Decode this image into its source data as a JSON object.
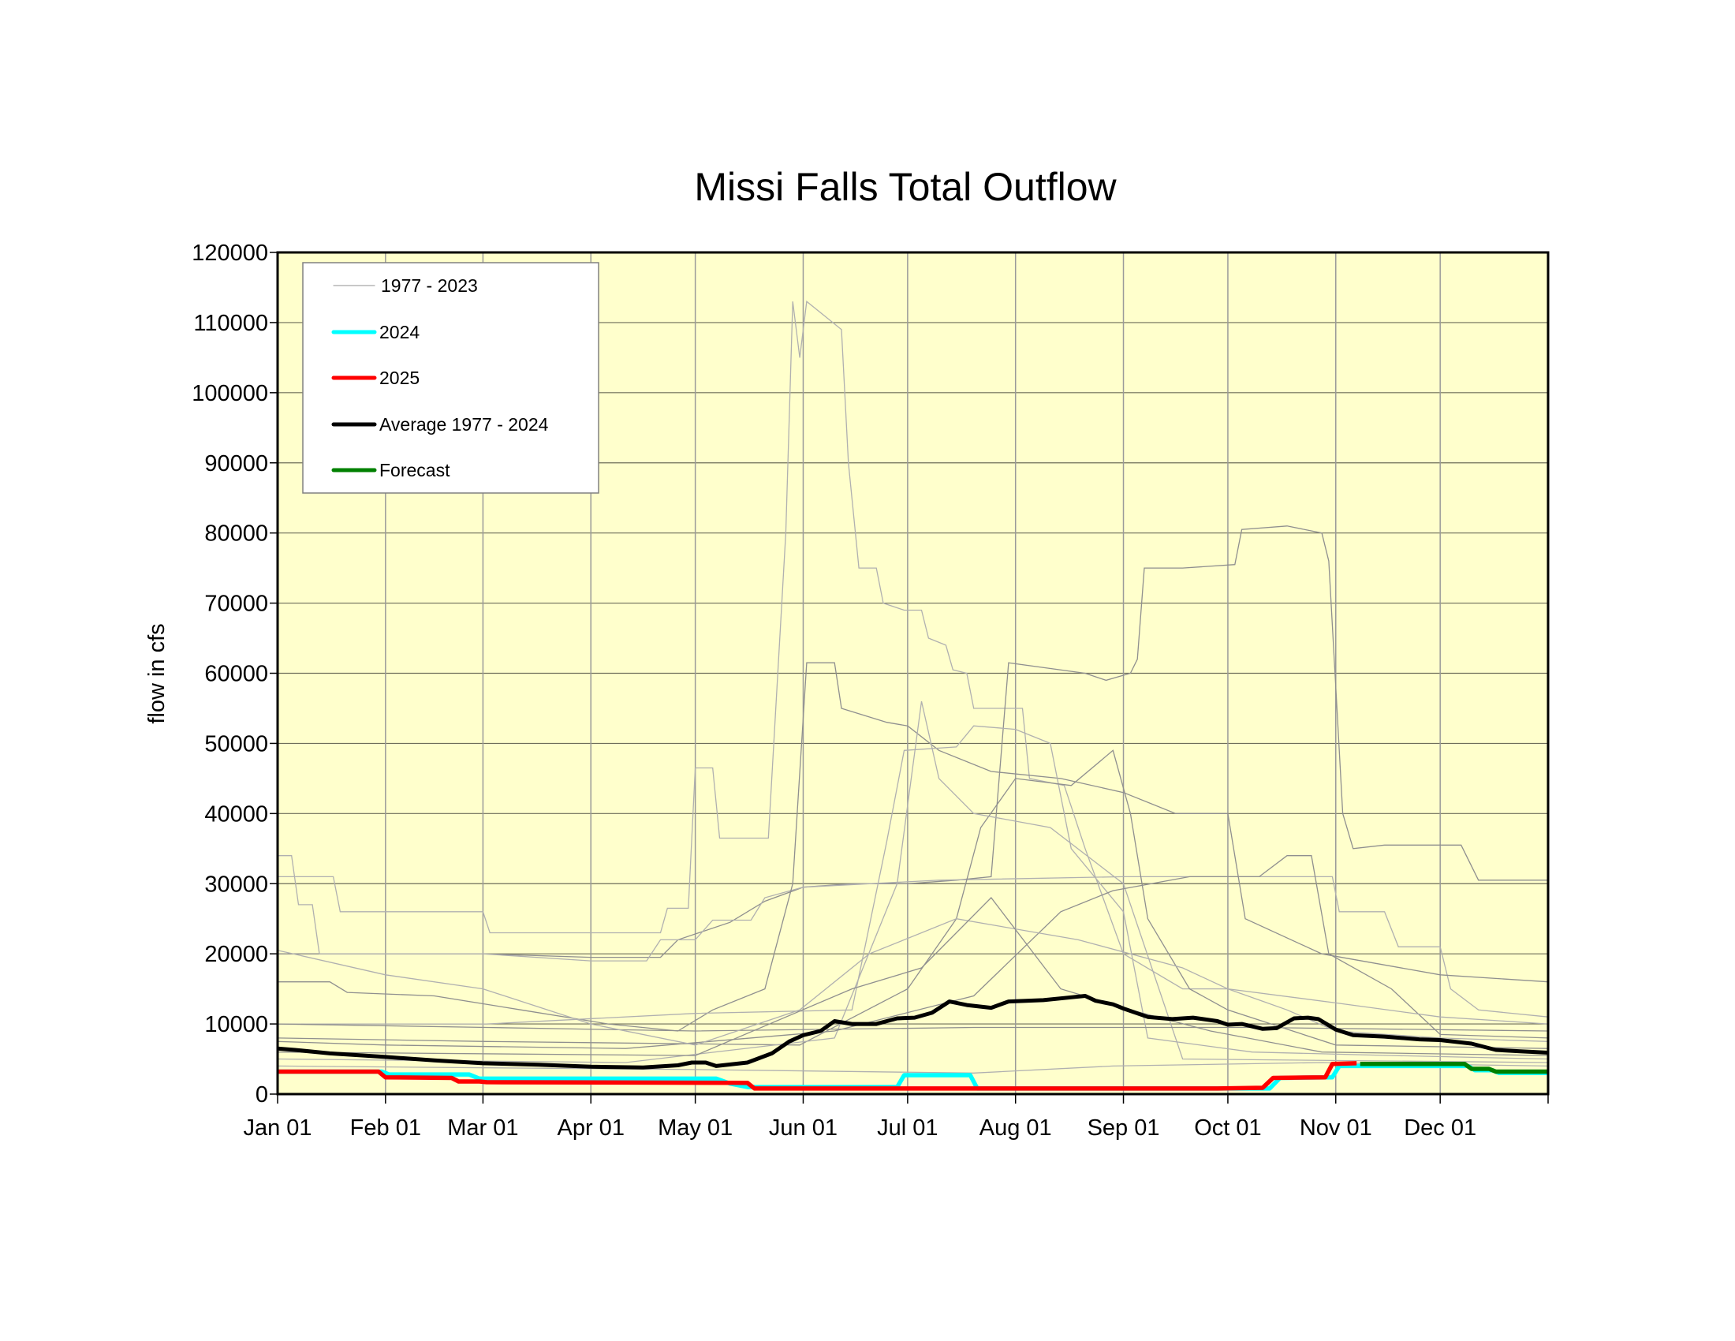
{
  "chart_data": {
    "type": "line",
    "title": "Missi Falls Total Outflow",
    "xlabel": "",
    "ylabel": "flow in cfs",
    "ylim": [
      0,
      120000
    ],
    "xlim_days": [
      0,
      365
    ],
    "yticks": [
      0,
      10000,
      20000,
      30000,
      40000,
      50000,
      60000,
      70000,
      80000,
      90000,
      100000,
      110000,
      120000
    ],
    "xticks": [
      {
        "label": "Jan 01",
        "day": 0
      },
      {
        "label": "Feb 01",
        "day": 31
      },
      {
        "label": "Mar 01",
        "day": 59
      },
      {
        "label": "Apr 01",
        "day": 90
      },
      {
        "label": "May 01",
        "day": 120
      },
      {
        "label": "Jun 01",
        "day": 151
      },
      {
        "label": "Jul 01",
        "day": 181
      },
      {
        "label": "Aug 01",
        "day": 212
      },
      {
        "label": "Sep 01",
        "day": 243
      },
      {
        "label": "Oct 01",
        "day": 273
      },
      {
        "label": "Nov 01",
        "day": 304
      },
      {
        "label": "Dec 01",
        "day": 334
      }
    ],
    "grid": true,
    "legend_position": "top-left",
    "legend": [
      {
        "label": "1977 - 2023",
        "color": "#a8a8a8",
        "width": 1
      },
      {
        "label": "2024",
        "color": "#00ffff",
        "width": 4
      },
      {
        "label": "2025",
        "color": "#ff0000",
        "width": 4
      },
      {
        "label": "Average 1977 - 2024",
        "color": "#000000",
        "width": 4
      },
      {
        "label": "Forecast",
        "color": "#008000",
        "width": 4
      }
    ],
    "historical": [
      [
        [
          0,
          31000
        ],
        [
          16,
          31000
        ],
        [
          18,
          26000
        ],
        [
          59,
          26000
        ],
        [
          61,
          23000
        ],
        [
          110,
          23000
        ],
        [
          112,
          26500
        ],
        [
          118,
          26500
        ],
        [
          120,
          46500
        ],
        [
          125,
          46500
        ],
        [
          127,
          36500
        ],
        [
          141,
          36500
        ],
        [
          146,
          80000
        ],
        [
          148,
          113000
        ],
        [
          150,
          105000
        ],
        [
          152,
          113000
        ],
        [
          157,
          111000
        ],
        [
          162,
          109000
        ],
        [
          164,
          90000
        ],
        [
          167,
          75000
        ],
        [
          172,
          75000
        ],
        [
          174,
          70000
        ],
        [
          180,
          69000
        ],
        [
          185,
          69000
        ],
        [
          187,
          65000
        ],
        [
          192,
          64000
        ],
        [
          194,
          60500
        ],
        [
          198,
          60000
        ],
        [
          200,
          55000
        ],
        [
          214,
          55000
        ],
        [
          216,
          45000
        ],
        [
          226,
          44000
        ],
        [
          232,
          35000
        ],
        [
          243,
          20000
        ],
        [
          260,
          15000
        ],
        [
          273,
          15000
        ],
        [
          290,
          12000
        ],
        [
          304,
          9000
        ],
        [
          334,
          8000
        ],
        [
          365,
          7500
        ]
      ],
      [
        [
          0,
          20000
        ],
        [
          59,
          20000
        ],
        [
          90,
          19500
        ],
        [
          110,
          19500
        ],
        [
          115,
          22000
        ],
        [
          130,
          24500
        ],
        [
          140,
          27500
        ],
        [
          151,
          29500
        ],
        [
          165,
          30000
        ],
        [
          181,
          30000
        ],
        [
          195,
          30500
        ],
        [
          205,
          31000
        ],
        [
          210,
          61500
        ],
        [
          232,
          60000
        ],
        [
          238,
          59000
        ],
        [
          245,
          60000
        ],
        [
          247,
          62000
        ],
        [
          249,
          75000
        ],
        [
          260,
          75000
        ],
        [
          275,
          75500
        ],
        [
          277,
          80500
        ],
        [
          290,
          81000
        ],
        [
          300,
          80000
        ],
        [
          302,
          76000
        ],
        [
          304,
          58000
        ],
        [
          306,
          40000
        ],
        [
          309,
          35000
        ],
        [
          318,
          35500
        ],
        [
          340,
          35500
        ],
        [
          345,
          30500
        ],
        [
          365,
          30500
        ]
      ],
      [
        [
          0,
          34000
        ],
        [
          4,
          34000
        ],
        [
          6,
          27000
        ],
        [
          10,
          27000
        ],
        [
          12,
          20000
        ],
        [
          59,
          20000
        ],
        [
          90,
          19000
        ],
        [
          106,
          19000
        ],
        [
          110,
          22000
        ],
        [
          120,
          22000
        ],
        [
          125,
          24800
        ],
        [
          136,
          24800
        ],
        [
          140,
          28000
        ],
        [
          151,
          29500
        ],
        [
          170,
          30000
        ],
        [
          190,
          30500
        ],
        [
          243,
          31000
        ],
        [
          303,
          31000
        ],
        [
          305,
          26000
        ],
        [
          318,
          26000
        ],
        [
          322,
          21000
        ],
        [
          334,
          21000
        ],
        [
          337,
          15000
        ],
        [
          345,
          12000
        ],
        [
          365,
          11000
        ]
      ],
      [
        [
          0,
          16000
        ],
        [
          15,
          16000
        ],
        [
          20,
          14500
        ],
        [
          45,
          14000
        ],
        [
          70,
          12000
        ],
        [
          95,
          10000
        ],
        [
          115,
          9000
        ],
        [
          125,
          12000
        ],
        [
          140,
          15000
        ],
        [
          148,
          30000
        ],
        [
          152,
          61500
        ],
        [
          160,
          61500
        ],
        [
          162,
          55000
        ],
        [
          175,
          53000
        ],
        [
          181,
          52500
        ],
        [
          190,
          49000
        ],
        [
          205,
          46000
        ],
        [
          225,
          45000
        ],
        [
          243,
          43000
        ],
        [
          258,
          40000
        ],
        [
          273,
          40000
        ],
        [
          278,
          25000
        ],
        [
          300,
          20000
        ],
        [
          334,
          17000
        ],
        [
          365,
          16000
        ]
      ],
      [
        [
          0,
          10000
        ],
        [
          60,
          10000
        ],
        [
          120,
          11500
        ],
        [
          165,
          12000
        ],
        [
          175,
          36000
        ],
        [
          180,
          49000
        ],
        [
          195,
          49500
        ],
        [
          200,
          52500
        ],
        [
          212,
          52000
        ],
        [
          222,
          50000
        ],
        [
          228,
          35000
        ],
        [
          243,
          26000
        ],
        [
          250,
          8000
        ],
        [
          280,
          6000
        ],
        [
          320,
          5500
        ],
        [
          365,
          5000
        ]
      ],
      [
        [
          0,
          8000
        ],
        [
          60,
          7500
        ],
        [
          150,
          7000
        ],
        [
          181,
          15000
        ],
        [
          195,
          25000
        ],
        [
          202,
          38000
        ],
        [
          212,
          45000
        ],
        [
          228,
          44000
        ],
        [
          240,
          49000
        ],
        [
          245,
          40000
        ],
        [
          250,
          25000
        ],
        [
          262,
          15000
        ],
        [
          273,
          12000
        ],
        [
          304,
          7000
        ],
        [
          365,
          6500
        ]
      ],
      [
        [
          0,
          5000
        ],
        [
          100,
          4500
        ],
        [
          160,
          8000
        ],
        [
          178,
          30000
        ],
        [
          185,
          56000
        ],
        [
          190,
          45000
        ],
        [
          200,
          40000
        ],
        [
          222,
          38000
        ],
        [
          243,
          30000
        ],
        [
          260,
          5000
        ],
        [
          365,
          4500
        ]
      ],
      [
        [
          0,
          7500
        ],
        [
          31,
          7000
        ],
        [
          100,
          6500
        ],
        [
          160,
          9000
        ],
        [
          200,
          14000
        ],
        [
          225,
          26000
        ],
        [
          240,
          29000
        ],
        [
          262,
          31000
        ],
        [
          282,
          31000
        ],
        [
          290,
          34000
        ],
        [
          297,
          34000
        ],
        [
          302,
          20000
        ],
        [
          320,
          15000
        ],
        [
          334,
          8500
        ],
        [
          365,
          8000
        ]
      ],
      [
        [
          0,
          4000
        ],
        [
          120,
          3500
        ],
        [
          200,
          3000
        ],
        [
          240,
          4000
        ],
        [
          300,
          4500
        ],
        [
          365,
          4000
        ]
      ],
      [
        [
          0,
          10000
        ],
        [
          60,
          9500
        ],
        [
          120,
          9000
        ],
        [
          200,
          9500
        ],
        [
          280,
          9500
        ],
        [
          365,
          9000
        ]
      ],
      [
        [
          0,
          20500
        ],
        [
          31,
          17000
        ],
        [
          59,
          15000
        ],
        [
          90,
          10000
        ],
        [
          120,
          7000
        ],
        [
          150,
          12000
        ],
        [
          170,
          20000
        ],
        [
          195,
          25000
        ],
        [
          230,
          22000
        ],
        [
          260,
          18000
        ],
        [
          273,
          15000
        ],
        [
          304,
          13000
        ],
        [
          334,
          11000
        ],
        [
          365,
          10000
        ]
      ],
      [
        [
          0,
          6000
        ],
        [
          120,
          5500
        ],
        [
          165,
          15000
        ],
        [
          185,
          18000
        ],
        [
          205,
          28000
        ],
        [
          225,
          15000
        ],
        [
          245,
          12000
        ],
        [
          268,
          9000
        ],
        [
          300,
          6000
        ],
        [
          365,
          5500
        ]
      ]
    ],
    "series": [
      {
        "name": "Average 1977 - 2024",
        "color": "#000000",
        "points": [
          [
            0,
            6500
          ],
          [
            5,
            6300
          ],
          [
            15,
            5800
          ],
          [
            31,
            5300
          ],
          [
            45,
            4800
          ],
          [
            59,
            4400
          ],
          [
            75,
            4200
          ],
          [
            90,
            3900
          ],
          [
            105,
            3800
          ],
          [
            115,
            4100
          ],
          [
            119,
            4500
          ],
          [
            123,
            4500
          ],
          [
            126,
            4000
          ],
          [
            135,
            4500
          ],
          [
            142,
            5800
          ],
          [
            147,
            7500
          ],
          [
            151,
            8400
          ],
          [
            156,
            9000
          ],
          [
            160,
            10400
          ],
          [
            165,
            10000
          ],
          [
            172,
            10000
          ],
          [
            178,
            10800
          ],
          [
            183,
            10900
          ],
          [
            188,
            11600
          ],
          [
            193,
            13200
          ],
          [
            198,
            12700
          ],
          [
            205,
            12300
          ],
          [
            210,
            13200
          ],
          [
            220,
            13400
          ],
          [
            228,
            13800
          ],
          [
            232,
            14000
          ],
          [
            235,
            13300
          ],
          [
            240,
            12800
          ],
          [
            243,
            12200
          ],
          [
            250,
            11000
          ],
          [
            257,
            10700
          ],
          [
            263,
            10900
          ],
          [
            270,
            10400
          ],
          [
            273,
            9900
          ],
          [
            277,
            10000
          ],
          [
            283,
            9300
          ],
          [
            287,
            9400
          ],
          [
            292,
            10800
          ],
          [
            296,
            10900
          ],
          [
            299,
            10700
          ],
          [
            304,
            9200
          ],
          [
            309,
            8400
          ],
          [
            318,
            8200
          ],
          [
            328,
            7800
          ],
          [
            334,
            7700
          ],
          [
            343,
            7200
          ],
          [
            350,
            6300
          ],
          [
            357,
            6100
          ],
          [
            365,
            5900
          ]
        ]
      },
      {
        "name": "2024",
        "color": "#00ffff",
        "points": [
          [
            0,
            3200
          ],
          [
            30,
            3200
          ],
          [
            32,
            2800
          ],
          [
            55,
            2800
          ],
          [
            58,
            2200
          ],
          [
            126,
            2200
          ],
          [
            130,
            1500
          ],
          [
            135,
            1000
          ],
          [
            178,
            1000
          ],
          [
            180,
            2700
          ],
          [
            199,
            2700
          ],
          [
            201,
            800
          ],
          [
            285,
            800
          ],
          [
            288,
            2300
          ],
          [
            303,
            2400
          ],
          [
            305,
            4000
          ],
          [
            342,
            4000
          ],
          [
            344,
            3400
          ],
          [
            349,
            3400
          ],
          [
            351,
            3000
          ],
          [
            365,
            3000
          ]
        ]
      },
      {
        "name": "2025",
        "color": "#ff0000",
        "points": [
          [
            0,
            3200
          ],
          [
            29,
            3200
          ],
          [
            31,
            2400
          ],
          [
            50,
            2300
          ],
          [
            52,
            1800
          ],
          [
            58,
            1800
          ],
          [
            60,
            1700
          ],
          [
            135,
            1600
          ],
          [
            137,
            800
          ],
          [
            270,
            800
          ],
          [
            283,
            900
          ],
          [
            286,
            2300
          ],
          [
            301,
            2400
          ],
          [
            303,
            4300
          ],
          [
            310,
            4400
          ]
        ]
      },
      {
        "name": "Forecast",
        "color": "#008000",
        "points": [
          [
            311,
            4300
          ],
          [
            341,
            4300
          ],
          [
            343,
            3600
          ],
          [
            348,
            3600
          ],
          [
            350,
            3200
          ],
          [
            365,
            3200
          ]
        ]
      }
    ]
  }
}
